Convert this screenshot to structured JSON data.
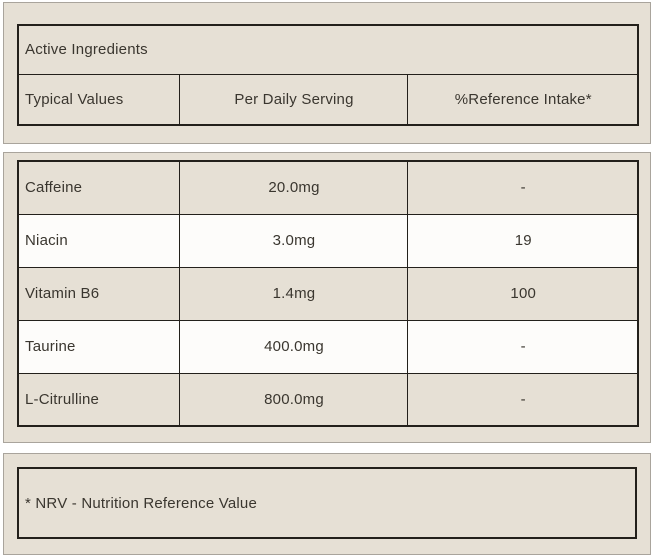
{
  "header": {
    "title": "Active Ingredients",
    "columns": [
      "Typical Values",
      "Per Daily Serving",
      "%Reference Intake*"
    ]
  },
  "rows": [
    {
      "name": "Caffeine",
      "per_serving": "20.0mg",
      "reference_intake": "-"
    },
    {
      "name": "Niacin",
      "per_serving": "3.0mg",
      "reference_intake": "19"
    },
    {
      "name": "Vitamin B6",
      "per_serving": "1.4mg",
      "reference_intake": "100"
    },
    {
      "name": "Taurine",
      "per_serving": "400.0mg",
      "reference_intake": "-"
    },
    {
      "name": "L-Citrulline",
      "per_serving": "800.0mg",
      "reference_intake": "-"
    }
  ],
  "footnote": "* NRV - Nutrition Reference Value",
  "colors": {
    "panel_background": "#e6e0d5",
    "alt_row_background": "#fdfcfa",
    "panel_border": "#a9a49c",
    "table_border": "#23201b",
    "text": "#3a362f",
    "page_background": "#ffffff"
  }
}
